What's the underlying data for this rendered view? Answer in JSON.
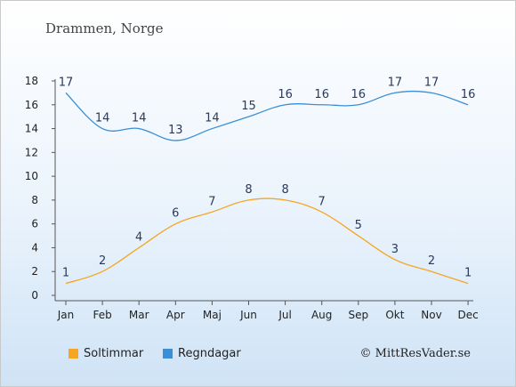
{
  "header": {
    "title": "Drammen, Norge"
  },
  "footer": {
    "credit": "© MittResVader.se"
  },
  "colors": {
    "sun": "#f5a623",
    "rain": "#3a8fd6",
    "axis": "#555555"
  },
  "chart_data": {
    "type": "line",
    "title": "Drammen, Norge",
    "categories": [
      "Jan",
      "Feb",
      "Mar",
      "Apr",
      "Maj",
      "Jun",
      "Jul",
      "Aug",
      "Sep",
      "Okt",
      "Nov",
      "Dec"
    ],
    "yticks": [
      "0",
      "2",
      "4",
      "6",
      "8",
      "10",
      "12",
      "14",
      "16",
      "18"
    ],
    "ylim": [
      0,
      18
    ],
    "grid": false,
    "legend_position": "bottom-left",
    "series": [
      {
        "name": "Soltimmar",
        "color": "#f5a623",
        "values": [
          1,
          2,
          4,
          6,
          7,
          8,
          8,
          7,
          5,
          3,
          2,
          1
        ]
      },
      {
        "name": "Regndagar",
        "color": "#3a8fd6",
        "values": [
          17,
          14,
          14,
          13,
          14,
          15,
          16,
          16,
          16,
          17,
          17,
          16
        ]
      }
    ]
  }
}
